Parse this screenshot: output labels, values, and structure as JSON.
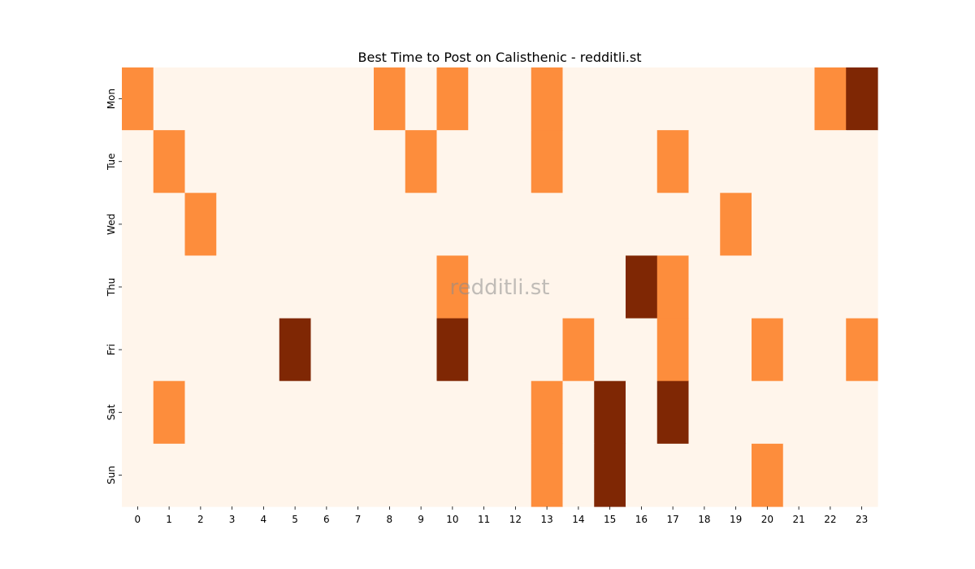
{
  "chart_data": {
    "type": "heatmap",
    "title": "Best Time to Post on Calisthenic - redditli.st",
    "xlabel": "",
    "ylabel": "",
    "x_categories": [
      "0",
      "1",
      "2",
      "3",
      "4",
      "5",
      "6",
      "7",
      "8",
      "9",
      "10",
      "11",
      "12",
      "13",
      "14",
      "15",
      "16",
      "17",
      "18",
      "19",
      "20",
      "21",
      "22",
      "23"
    ],
    "y_categories": [
      "Mon",
      "Tue",
      "Wed",
      "Thu",
      "Fri",
      "Sat",
      "Sun"
    ],
    "values": [
      [
        1,
        0,
        0,
        0,
        0,
        0,
        0,
        0,
        1,
        0,
        1,
        0,
        0,
        1,
        0,
        0,
        0,
        0,
        0,
        0,
        0,
        0,
        1,
        2
      ],
      [
        0,
        1,
        0,
        0,
        0,
        0,
        0,
        0,
        0,
        1,
        0,
        0,
        0,
        1,
        0,
        0,
        0,
        1,
        0,
        0,
        0,
        0,
        0,
        0
      ],
      [
        0,
        0,
        1,
        0,
        0,
        0,
        0,
        0,
        0,
        0,
        0,
        0,
        0,
        0,
        0,
        0,
        0,
        0,
        0,
        1,
        0,
        0,
        0,
        0
      ],
      [
        0,
        0,
        0,
        0,
        0,
        0,
        0,
        0,
        0,
        0,
        1,
        0,
        0,
        0,
        0,
        0,
        2,
        1,
        0,
        0,
        0,
        0,
        0,
        0
      ],
      [
        0,
        0,
        0,
        0,
        0,
        2,
        0,
        0,
        0,
        0,
        2,
        0,
        0,
        0,
        1,
        0,
        0,
        1,
        0,
        0,
        1,
        0,
        0,
        1
      ],
      [
        0,
        1,
        0,
        0,
        0,
        0,
        0,
        0,
        0,
        0,
        0,
        0,
        0,
        1,
        0,
        2,
        0,
        2,
        0,
        0,
        0,
        0,
        0,
        0
      ],
      [
        0,
        0,
        0,
        0,
        0,
        0,
        0,
        0,
        0,
        0,
        0,
        0,
        0,
        1,
        0,
        2,
        0,
        0,
        0,
        0,
        1,
        0,
        0,
        0
      ]
    ],
    "value_range": [
      0,
      2
    ],
    "colormap": "Oranges",
    "level_colors": [
      "#fff5eb",
      "#fd8d3c",
      "#7f2704"
    ],
    "colorbar": false,
    "grid": false,
    "watermark": "redditli.st"
  }
}
